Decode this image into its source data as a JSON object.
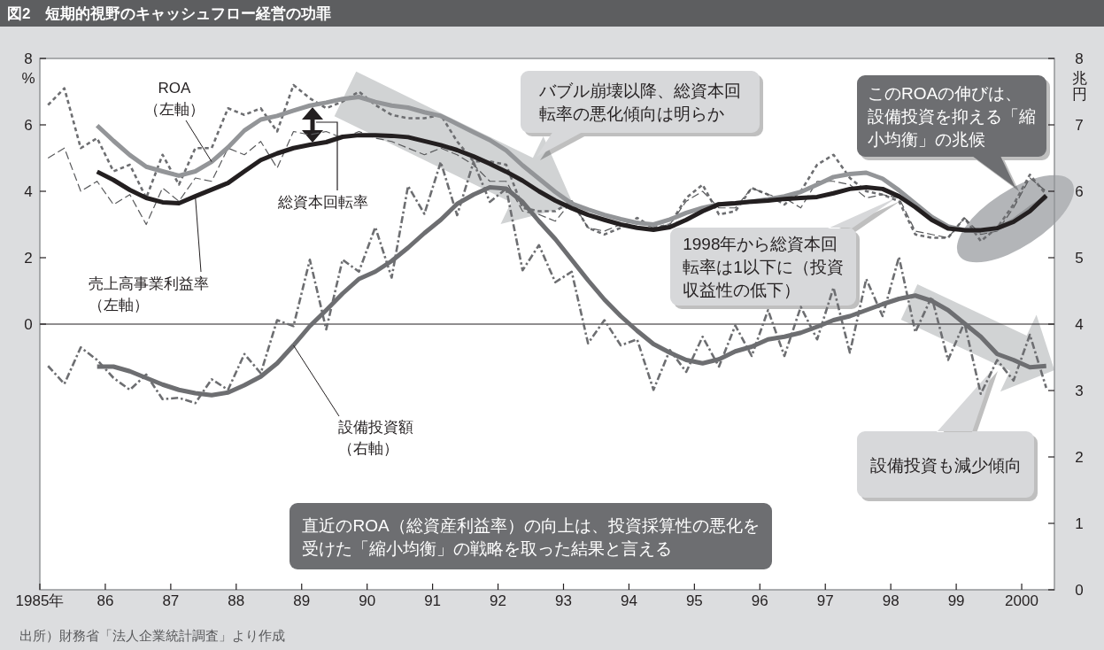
{
  "chart_data": {
    "type": "line",
    "title": "図2　短期的視野のキャッシュフロー経営の功罪",
    "ylabel": "%",
    "y2label": "兆円",
    "x": [
      1985.125,
      1985.375,
      1985.625,
      1985.875,
      1986.125,
      1986.375,
      1986.625,
      1986.875,
      1987.125,
      1987.375,
      1987.625,
      1987.875,
      1988.125,
      1988.375,
      1988.625,
      1988.875,
      1989.125,
      1989.375,
      1989.625,
      1989.875,
      1990.125,
      1990.375,
      1990.625,
      1990.875,
      1991.125,
      1991.375,
      1991.625,
      1991.875,
      1992.125,
      1992.375,
      1992.625,
      1992.875,
      1993.125,
      1993.375,
      1993.625,
      1993.875,
      1994.125,
      1994.375,
      1994.625,
      1994.875,
      1995.125,
      1995.375,
      1995.625,
      1995.875,
      1996.125,
      1996.375,
      1996.625,
      1996.875,
      1997.125,
      1997.375,
      1997.625,
      1997.875,
      1998.125,
      1998.375,
      1998.625,
      1998.875,
      1999.125,
      1999.375,
      1999.625,
      1999.875,
      2000.125,
      2000.375
    ],
    "xlim": [
      1985,
      2000.5
    ],
    "xticks": [
      {
        "value": 1985,
        "label": "1985年"
      },
      {
        "value": 1986,
        "label": "86"
      },
      {
        "value": 1987,
        "label": "87"
      },
      {
        "value": 1988,
        "label": "88"
      },
      {
        "value": 1989,
        "label": "89"
      },
      {
        "value": 1990,
        "label": "90"
      },
      {
        "value": 1991,
        "label": "91"
      },
      {
        "value": 1992,
        "label": "92"
      },
      {
        "value": 1993,
        "label": "93"
      },
      {
        "value": 1994,
        "label": "94"
      },
      {
        "value": 1995,
        "label": "95"
      },
      {
        "value": 1996,
        "label": "96"
      },
      {
        "value": 1997,
        "label": "97"
      },
      {
        "value": 1998,
        "label": "98"
      },
      {
        "value": 1999,
        "label": "99"
      },
      2000
    ],
    "ylim": [
      -8,
      8
    ],
    "yticks": [
      0,
      2,
      4,
      6,
      8
    ],
    "y2lim": [
      0,
      8
    ],
    "y2ticks": [
      0,
      1,
      2,
      3,
      4,
      5,
      6,
      7,
      8
    ],
    "series": [
      {
        "color": "#6d6e71",
        "line_style": "dotted",
        "values": [
          6.6,
          7.1,
          5.3,
          5.6,
          4.6,
          4.8,
          3.8,
          5.1,
          4.2,
          5.3,
          5.3,
          6.5,
          6.3,
          6.5,
          5.8,
          7.2,
          6.8,
          6.5,
          6.7,
          7.0,
          6.6,
          6.3,
          6.2,
          6.2,
          6.3,
          5.5,
          4.9,
          4.9,
          4.8,
          3.5,
          3.4,
          3.4,
          3.7,
          2.9,
          2.7,
          2.9,
          3.2,
          2.9,
          3.0,
          3.8,
          4.2,
          3.3,
          3.4,
          4.1,
          3.9,
          3.6,
          4.0,
          4.8,
          5.1,
          4.4,
          4.0,
          3.9,
          3.7,
          2.7,
          2.6,
          2.6,
          3.2,
          2.5,
          2.9,
          3.6,
          4.5,
          3.9
        ]
      },
      {
        "color": "#58595b",
        "line_style": "dashed",
        "values": [
          5.0,
          5.3,
          4.0,
          4.3,
          3.6,
          3.9,
          3.0,
          4.1,
          3.7,
          4.4,
          4.3,
          5.3,
          5.1,
          5.5,
          4.7,
          5.8,
          5.7,
          5.8,
          5.6,
          5.8,
          5.6,
          5.5,
          5.3,
          5.1,
          5.3,
          5.1,
          4.8,
          4.3,
          4.3,
          3.4,
          3.3,
          3.1,
          3.7,
          2.9,
          2.8,
          3.0,
          3.1,
          2.9,
          3.0,
          3.7,
          4.0,
          3.5,
          3.5,
          4.1,
          3.9,
          3.8,
          3.5,
          4.3,
          4.3,
          4.2,
          3.8,
          3.9,
          3.8,
          2.8,
          2.7,
          2.6,
          3.2,
          2.7,
          2.8,
          3.5,
          4.4,
          4.0
        ]
      },
      {
        "color": "#6d6e71",
        "line_style": "dashdot",
        "axis": "y2",
        "values": [
          3.37,
          3.1,
          3.65,
          3.46,
          3.19,
          3.01,
          3.24,
          2.87,
          2.89,
          2.81,
          3.17,
          3.01,
          3.55,
          3.26,
          4.06,
          3.97,
          4.97,
          3.92,
          4.97,
          4.79,
          5.46,
          4.7,
          6.08,
          5.66,
          6.44,
          5.64,
          6.44,
          5.84,
          6.04,
          4.81,
          5.19,
          4.63,
          4.79,
          3.71,
          4.06,
          3.68,
          3.77,
          3.01,
          3.61,
          3.28,
          3.81,
          3.36,
          3.98,
          3.52,
          4.21,
          3.52,
          4.26,
          3.77,
          4.55,
          3.57,
          4.68,
          4.12,
          5.01,
          3.88,
          4.41,
          3.46,
          4.02,
          2.95,
          3.46,
          3.15,
          3.84,
          3.04
        ]
      },
      {
        "name": "設備投資額（右軸）",
        "color": "#6d6e71",
        "axis": "y2",
        "values": [
          null,
          null,
          null,
          3.36,
          3.36,
          3.29,
          3.19,
          3.09,
          3.01,
          2.96,
          2.93,
          2.97,
          3.08,
          3.21,
          3.41,
          3.68,
          3.97,
          4.21,
          4.46,
          4.68,
          4.79,
          4.95,
          5.15,
          5.37,
          5.57,
          5.81,
          5.95,
          6.06,
          6.04,
          5.84,
          5.55,
          5.28,
          4.97,
          4.66,
          4.37,
          4.12,
          3.9,
          3.7,
          3.57,
          3.46,
          3.41,
          3.47,
          3.59,
          3.66,
          3.77,
          3.81,
          3.87,
          3.96,
          4.06,
          4.12,
          4.21,
          4.3,
          4.38,
          4.43,
          4.35,
          4.21,
          4.01,
          3.81,
          3.55,
          3.46,
          3.35,
          3.37
        ]
      },
      {
        "name": "ROA（左軸）",
        "color": "#939598",
        "values": [
          null,
          null,
          null,
          5.98,
          5.52,
          5.09,
          4.74,
          4.6,
          4.47,
          4.6,
          4.89,
          5.32,
          5.83,
          6.16,
          6.27,
          6.43,
          6.58,
          6.67,
          6.78,
          6.84,
          6.69,
          6.58,
          6.52,
          6.38,
          6.27,
          6.03,
          5.78,
          5.54,
          5.23,
          4.78,
          4.38,
          3.98,
          3.63,
          3.45,
          3.29,
          3.16,
          3.05,
          3.0,
          3.15,
          3.35,
          3.5,
          3.61,
          3.64,
          3.69,
          3.76,
          3.85,
          3.98,
          4.2,
          4.43,
          4.52,
          4.56,
          4.38,
          4.03,
          3.63,
          3.23,
          2.94,
          2.83,
          2.8,
          2.87,
          3.12,
          3.49,
          3.82
        ]
      },
      {
        "name": "売上高事業利益率（左軸）",
        "color": "#231f20",
        "values": [
          null,
          null,
          null,
          4.59,
          4.34,
          4.04,
          3.8,
          3.67,
          3.64,
          3.85,
          4.05,
          4.25,
          4.6,
          4.94,
          5.14,
          5.3,
          5.4,
          5.48,
          5.64,
          5.69,
          5.69,
          5.67,
          5.63,
          5.51,
          5.39,
          5.24,
          5.05,
          4.83,
          4.59,
          4.32,
          4.0,
          3.72,
          3.49,
          3.29,
          3.14,
          3.0,
          2.9,
          2.84,
          2.92,
          3.14,
          3.4,
          3.61,
          3.64,
          3.69,
          3.72,
          3.77,
          3.8,
          3.83,
          3.94,
          4.07,
          4.12,
          4.07,
          3.85,
          3.52,
          3.14,
          2.88,
          2.83,
          2.83,
          2.89,
          3.08,
          3.4,
          3.87
        ]
      }
    ],
    "ref_lines": [
      {
        "axis": "y",
        "value": 0,
        "color": "#231f20"
      }
    ],
    "annotations": [
      "総資本回転率",
      "バブル崩壊以降、総資本回転率の悪化傾向は明らか",
      "このROAの伸びは、設備投資を抑える「縮小均衡」の兆候",
      "1998年から総資本回転率は1以下に（投資収益性の低下）",
      "設備投資も減少傾向",
      "直近のROA（総資産利益率）の向上は、投資採算性の悪化を受けた「縮小均衡」の戦略を取った結果と言える",
      "出所）財務省「法人企業統計調査」より作成"
    ]
  }
}
